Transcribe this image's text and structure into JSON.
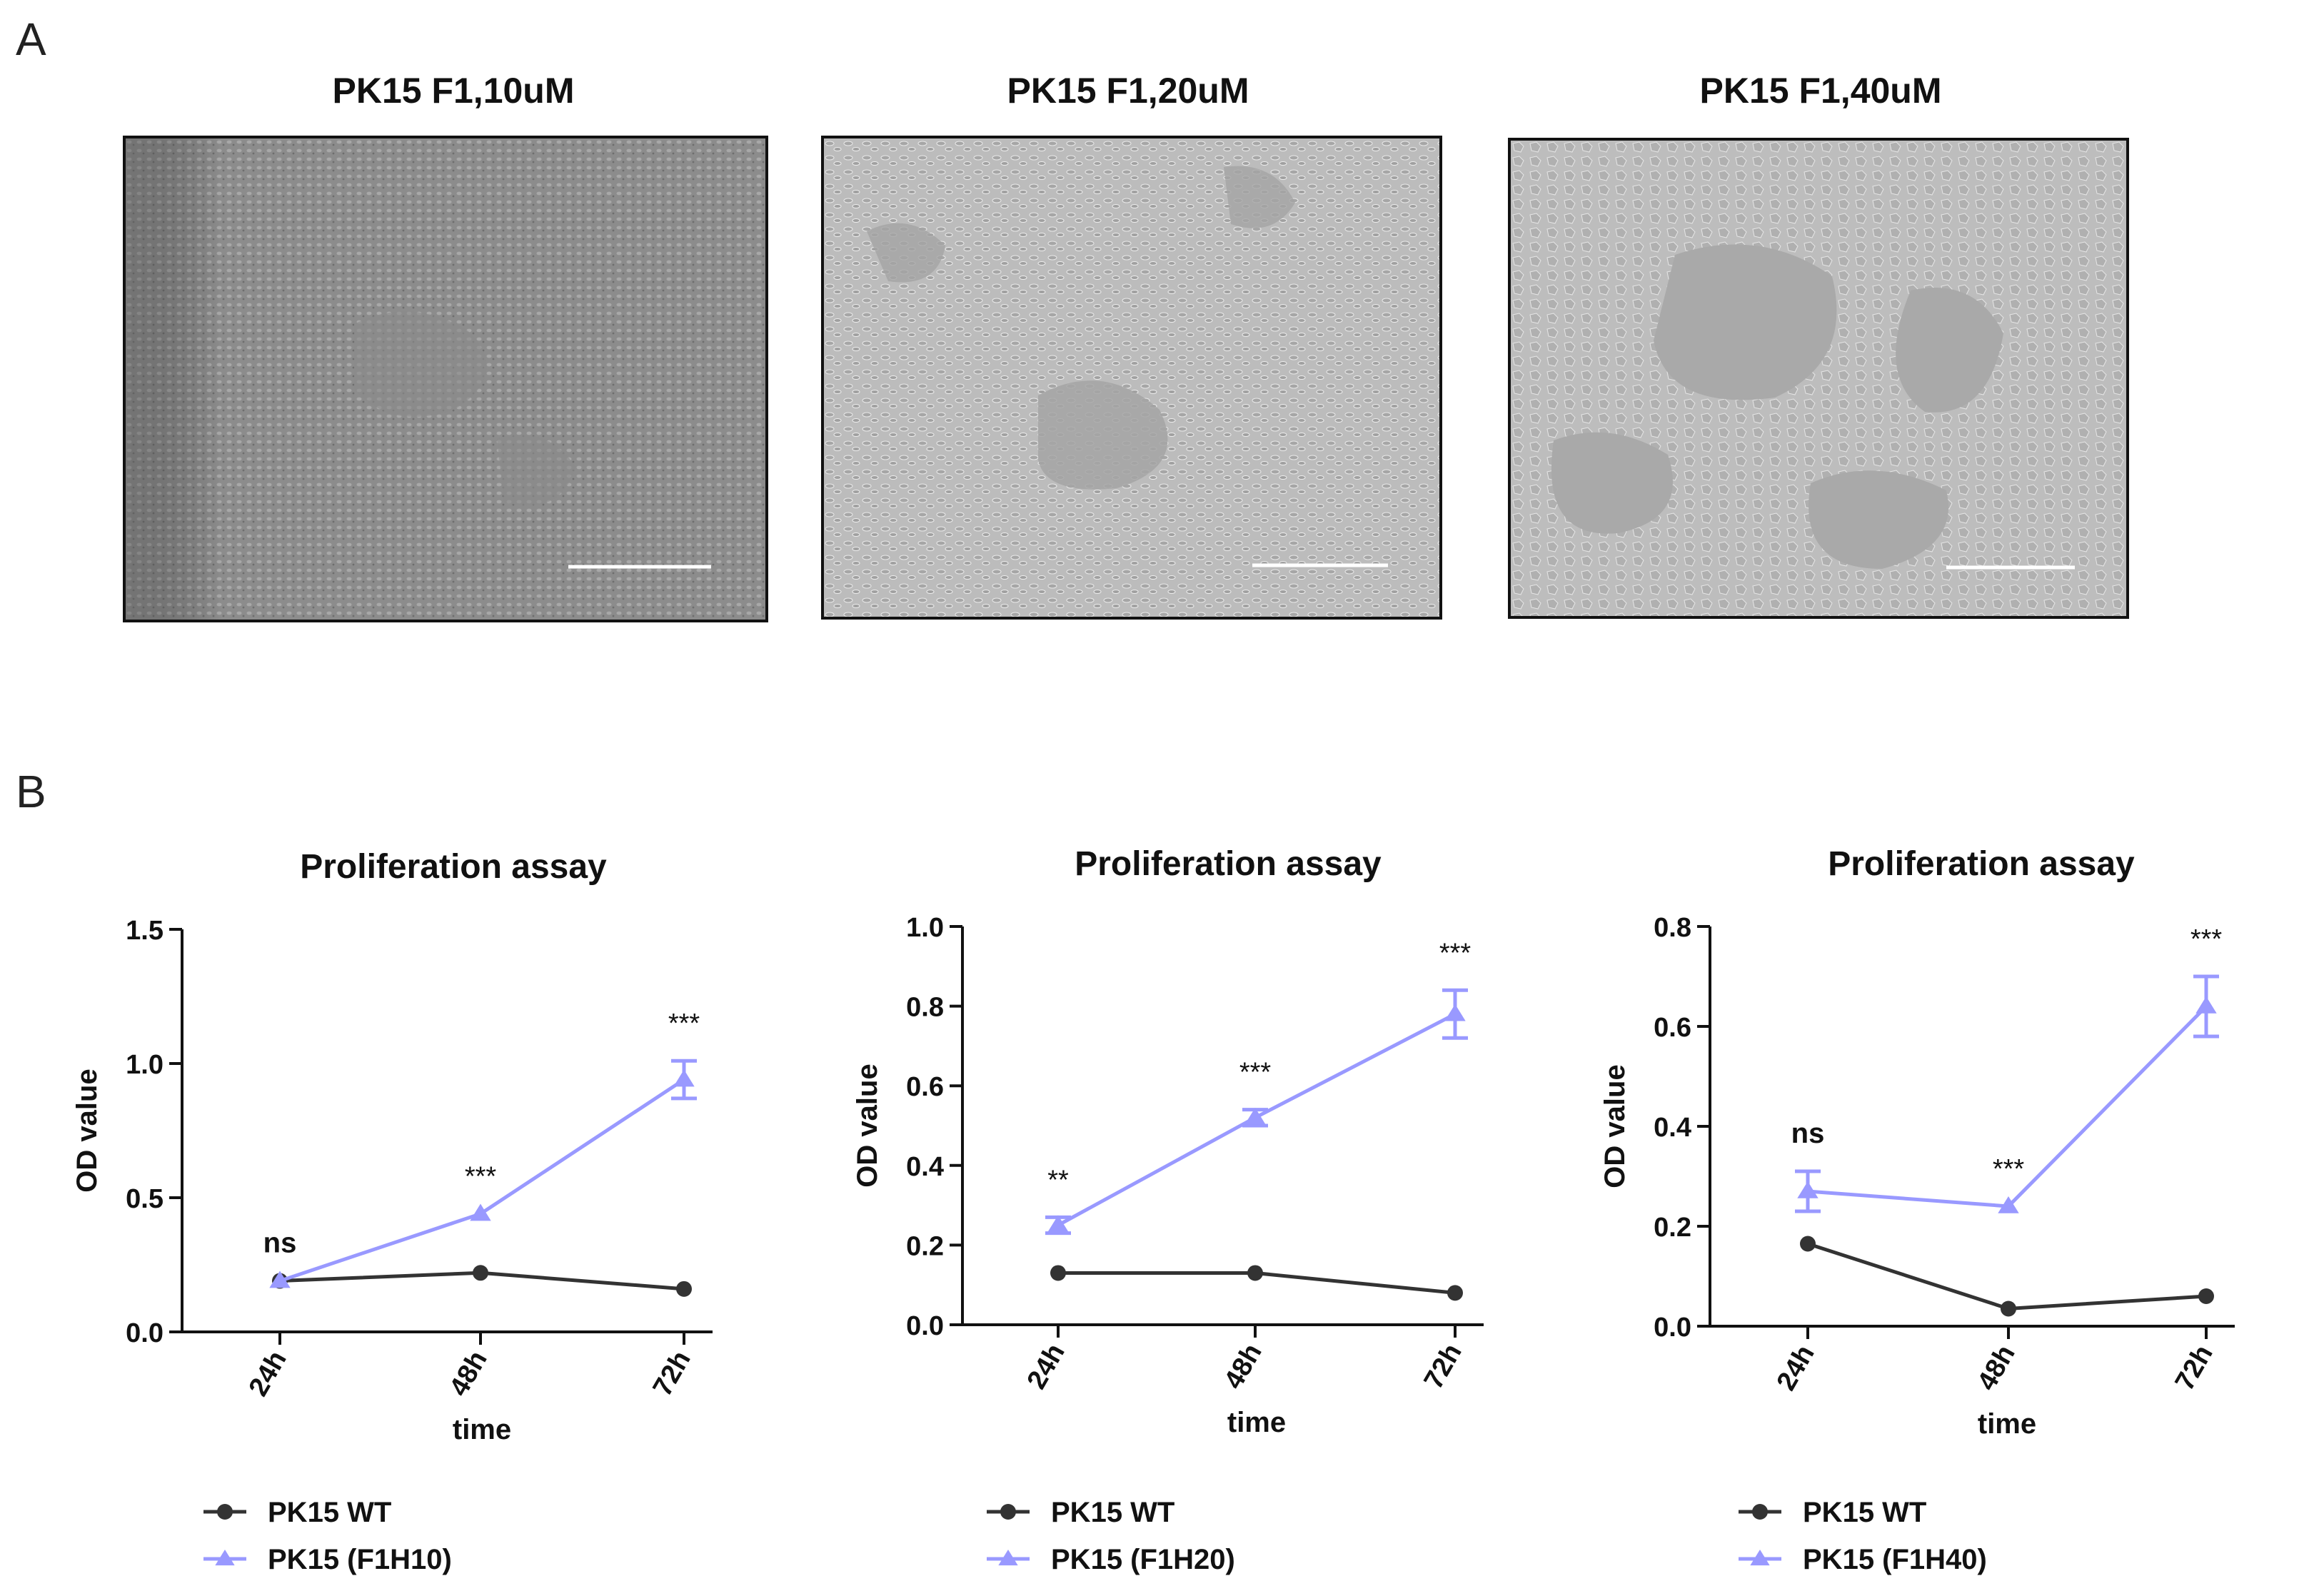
{
  "panels": {
    "a_label": "A",
    "b_label": "B"
  },
  "micrographs": [
    {
      "title": "PK15 F1,10uM"
    },
    {
      "title": "PK15 F1,20uM"
    },
    {
      "title": "PK15 F1,40uM"
    }
  ],
  "colors": {
    "wt": "#333333",
    "treated": "#9999ff",
    "axis": "#111111"
  },
  "chart_data": [
    {
      "type": "line",
      "title": "Proliferation assay",
      "xlabel": "time",
      "ylabel": "OD value",
      "categories": [
        "24h",
        "48h",
        "72h"
      ],
      "ylim": [
        0,
        1.5
      ],
      "yticks": [
        0.0,
        0.5,
        1.0,
        1.5
      ],
      "ytick_labels": [
        "0.0",
        "0.5",
        "1.0",
        "1.5"
      ],
      "series": [
        {
          "name": "PK15 WT",
          "values": [
            0.19,
            0.22,
            0.16
          ],
          "errors": [
            0.0,
            0.0,
            0.0
          ],
          "marker": "circle"
        },
        {
          "name": "PK15 (F1H10)",
          "values": [
            0.19,
            0.44,
            0.94
          ],
          "errors": [
            0.0,
            0.0,
            0.07
          ],
          "marker": "triangle"
        }
      ],
      "annotations": [
        "ns",
        "***",
        "***"
      ]
    },
    {
      "type": "line",
      "title": "Proliferation assay",
      "xlabel": "time",
      "ylabel": "OD value",
      "categories": [
        "24h",
        "48h",
        "72h"
      ],
      "ylim": [
        0,
        1.0
      ],
      "yticks": [
        0.0,
        0.2,
        0.4,
        0.6,
        0.8,
        1.0
      ],
      "ytick_labels": [
        "0.0",
        "0.2",
        "0.4",
        "0.6",
        "0.8",
        "1.0"
      ],
      "series": [
        {
          "name": "PK15 WT",
          "values": [
            0.13,
            0.13,
            0.08
          ],
          "errors": [
            0.0,
            0.0,
            0.0
          ],
          "marker": "circle"
        },
        {
          "name": "PK15 (F1H20)",
          "values": [
            0.25,
            0.52,
            0.78
          ],
          "errors": [
            0.02,
            0.02,
            0.06
          ],
          "marker": "triangle"
        }
      ],
      "annotations": [
        "**",
        "***",
        "***"
      ]
    },
    {
      "type": "line",
      "title": "Proliferation assay",
      "xlabel": "time",
      "ylabel": "OD value",
      "categories": [
        "24h",
        "48h",
        "72h"
      ],
      "ylim": [
        0,
        0.8
      ],
      "yticks": [
        0.0,
        0.2,
        0.4,
        0.6,
        0.8
      ],
      "ytick_labels": [
        "0.0",
        "0.2",
        "0.4",
        "0.6",
        "0.8"
      ],
      "series": [
        {
          "name": "PK15 WT",
          "values": [
            0.165,
            0.035,
            0.06
          ],
          "errors": [
            0.0,
            0.0,
            0.0
          ],
          "marker": "circle"
        },
        {
          "name": "PK15 (F1H40)",
          "values": [
            0.27,
            0.24,
            0.64
          ],
          "errors": [
            0.04,
            0.0,
            0.06
          ],
          "marker": "triangle"
        }
      ],
      "annotations": [
        "ns",
        "***",
        "***"
      ]
    }
  ]
}
